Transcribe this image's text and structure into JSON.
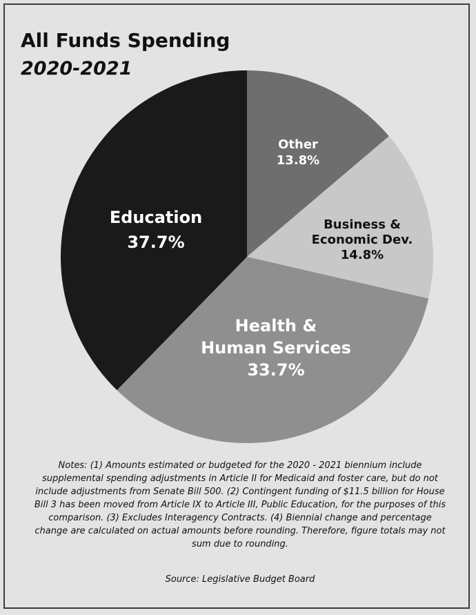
{
  "chart_data": {
    "type": "pie",
    "title": "All Funds Spending",
    "subtitle": "2020-2021",
    "slices": [
      {
        "label": [
          "Other"
        ],
        "value_label": "13.8%",
        "value": 13.8,
        "color": "#6e6e6e",
        "text_color": "#ffffff"
      },
      {
        "label": [
          "Business &",
          "Economic Dev."
        ],
        "value_label": "14.8%",
        "value": 14.8,
        "color": "#c8c8c8",
        "text_color": "#111111"
      },
      {
        "label": [
          "Health &",
          "Human Services"
        ],
        "value_label": "33.7%",
        "value": 33.7,
        "color": "#8f8f8f",
        "text_color": "#ffffff"
      },
      {
        "label": [
          "Education"
        ],
        "value_label": "37.7%",
        "value": 37.7,
        "color": "#1a1a1a",
        "text_color": "#ffffff"
      }
    ]
  },
  "notes": "Notes: (1) Amounts estimated or budgeted for the 2020 - 2021 biennium include supplemental spending adjustments in Article II for Medicaid and foster care, but do not include adjustments from Senate Bill 500. (2) Contingent funding of $11.5 billion for House Bill 3 has been moved from Article IX to Article III, Public Education, for the purposes of this comparison. (3) Excludes Interagency Contracts. (4) Biennial change and percentage change are calculated on actual amounts before rounding. Therefore, figure totals may not sum due to rounding.",
  "source": "Source: Legislative Budget Board"
}
